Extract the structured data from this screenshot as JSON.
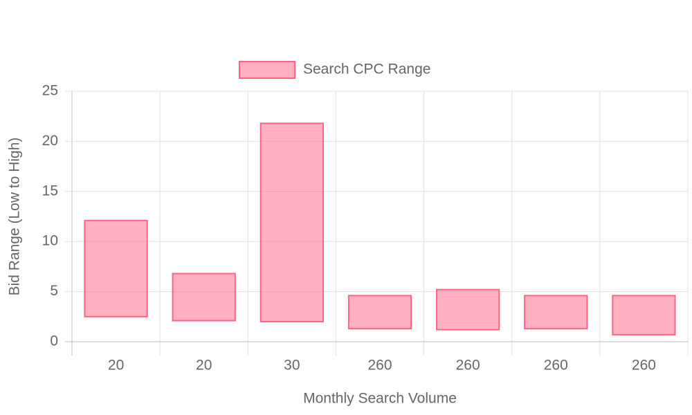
{
  "chart_data": {
    "type": "floating-bar",
    "x_label": "Monthly Search Volume",
    "y_label": "Bid Range (Low to High)",
    "categories": [
      "20",
      "20",
      "30",
      "260",
      "260",
      "260",
      "260"
    ],
    "series": [
      {
        "name": "Search CPC Range",
        "color": "#ff6384",
        "values": [
          [
            2.5,
            12.1
          ],
          [
            2.1,
            6.8
          ],
          [
            2.0,
            21.8
          ],
          [
            1.3,
            4.6
          ],
          [
            1.2,
            5.2
          ],
          [
            1.3,
            4.6
          ],
          [
            0.7,
            4.6
          ]
        ]
      }
    ],
    "ylim": [
      0,
      25
    ],
    "yticks": [
      0,
      5,
      10,
      15,
      20,
      25
    ],
    "grid": true,
    "legend": "top"
  }
}
